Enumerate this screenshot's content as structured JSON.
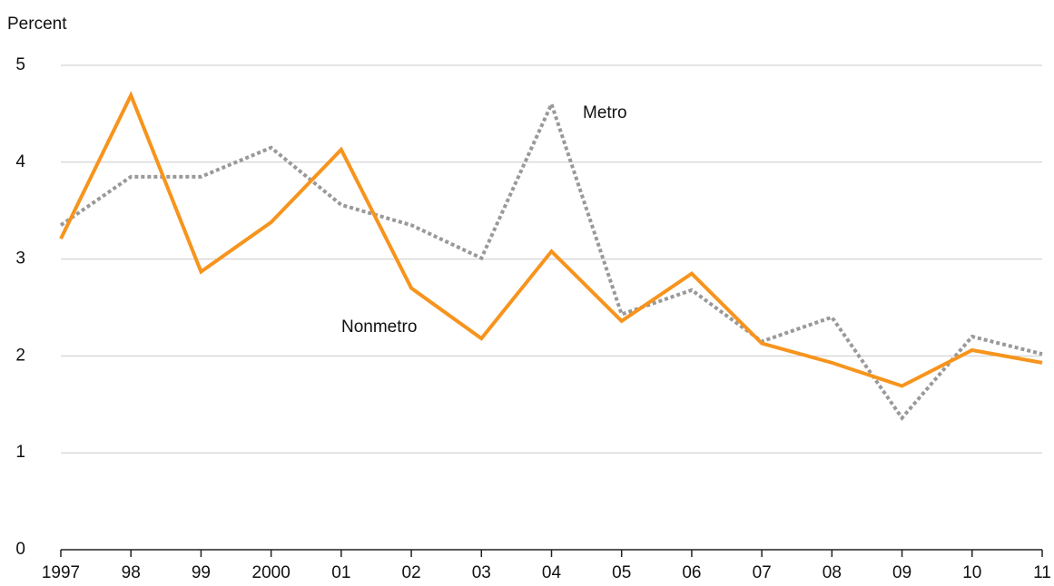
{
  "chart_data": {
    "type": "line",
    "y_label": "Percent",
    "categories": [
      "1997",
      "98",
      "99",
      "2000",
      "01",
      "02",
      "03",
      "04",
      "05",
      "06",
      "07",
      "08",
      "09",
      "10",
      "11"
    ],
    "series": [
      {
        "name": "Metro",
        "color": "#999999",
        "dashed": true,
        "values": [
          3.35,
          3.85,
          3.85,
          4.15,
          3.56,
          3.35,
          3.01,
          4.6,
          2.43,
          2.68,
          2.15,
          2.4,
          1.36,
          2.2,
          2.02
        ]
      },
      {
        "name": "Nonmetro",
        "color": "#f7941d",
        "dashed": false,
        "values": [
          3.21,
          4.69,
          2.87,
          3.38,
          4.13,
          2.7,
          2.18,
          3.08,
          2.36,
          2.85,
          2.13,
          1.93,
          1.69,
          2.06,
          1.93
        ]
      }
    ],
    "ylim": [
      0,
      5
    ],
    "yticks": [
      0,
      1,
      2,
      3,
      4,
      5
    ],
    "grid": true
  }
}
